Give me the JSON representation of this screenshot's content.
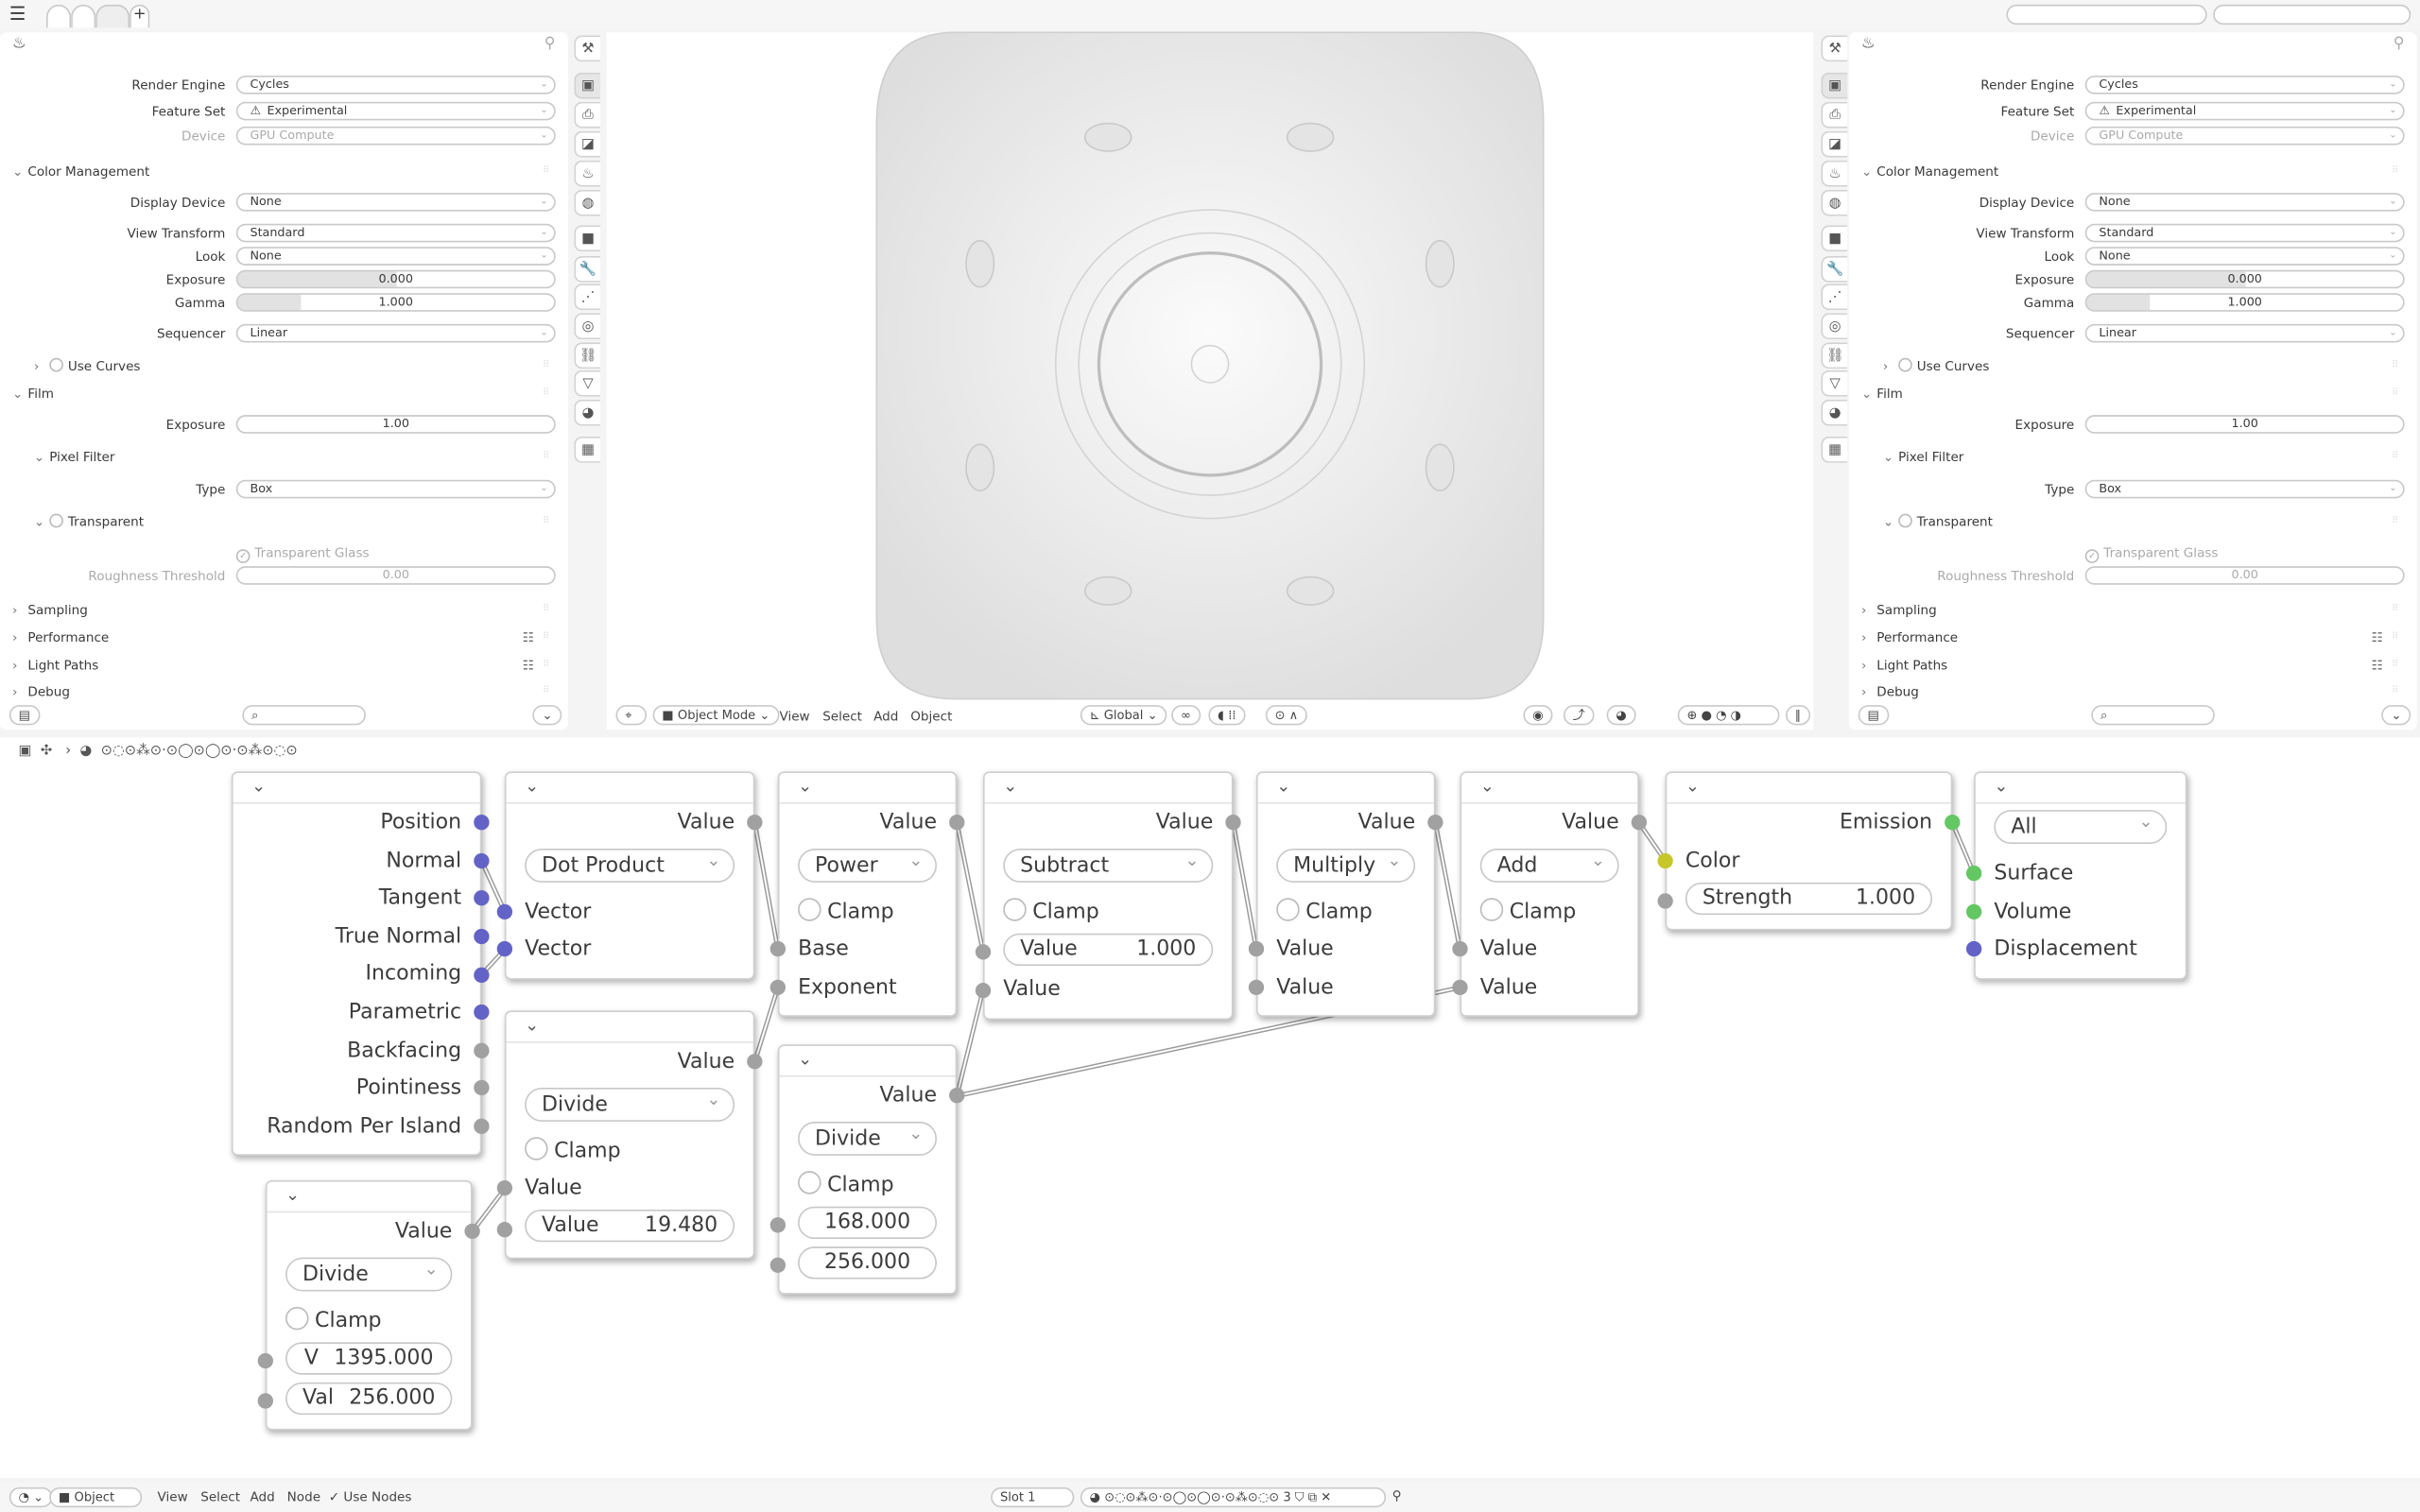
{
  "topbar": {
    "menu_icon": "hamburger-icon",
    "workspace_tabs": [
      "",
      "",
      ""
    ],
    "add_tab": "+"
  },
  "properties": {
    "editor_icon": "render-properties-icon",
    "rows": [
      {
        "label": "Render Engine",
        "value": "Cycles"
      },
      {
        "label": "Feature Set",
        "value": "Experimental",
        "icon": "warning-icon"
      },
      {
        "label": "Device",
        "value": "GPU Compute",
        "disabled": true
      },
      {
        "title": "Color Management",
        "expanded": true
      },
      {
        "label": "Display Device",
        "value": "None"
      },
      {
        "label": "View Transform",
        "value": "Standard"
      },
      {
        "label": "Look",
        "value": "None"
      },
      {
        "label": "Exposure",
        "value": "0.000",
        "fill": 0.5
      },
      {
        "label": "Gamma",
        "value": "1.000",
        "fill": 0.2
      },
      {
        "label": "Sequencer",
        "value": "Linear"
      },
      {
        "title": "Use Curves",
        "expanded": false,
        "checked": false
      },
      {
        "title": "Film",
        "expanded": true
      },
      {
        "label": "Exposure",
        "value": "1.00",
        "fill": 0
      },
      {
        "title": "Pixel Filter",
        "expanded": true
      },
      {
        "label": "Type",
        "value": "Box"
      },
      {
        "title": "Transparent",
        "expanded": true,
        "checked": false
      },
      {
        "title": "Transparent Glass",
        "checked": true,
        "disabled": true
      },
      {
        "label": "Roughness Threshold",
        "value": "0.00",
        "fill": 0,
        "disabled": true
      },
      {
        "title": "Sampling",
        "expanded": false
      },
      {
        "title": "Performance",
        "expanded": false,
        "icon": "list-icon"
      },
      {
        "title": "Light Paths",
        "expanded": false,
        "icon": "list-icon"
      },
      {
        "title": "Debug",
        "expanded": false
      }
    ],
    "tab_icons": [
      "tool-icon",
      "render-icon",
      "output-icon",
      "view-layer-icon",
      "scene-icon",
      "world-icon",
      "object-icon",
      "modifier-icon",
      "particles-icon",
      "physics-icon",
      "constraints-icon",
      "data-icon",
      "material-icon",
      "texture-icon"
    ]
  },
  "viewport": {
    "header": {
      "mode": "Object Mode",
      "menus": [
        "View",
        "Select",
        "Add",
        "Object"
      ],
      "orientation": "Global"
    }
  },
  "node_editor": {
    "breadcrumb": "⊙◌⊙⁂⊙·⊙◯⊙◯⊙·⊙⁂⊙◌⊙",
    "nodes": [
      {
        "rows": [
          {
            "t": "out",
            "label": "Position",
            "color": "#6363c7"
          },
          {
            "t": "out",
            "label": "Normal",
            "color": "#6363c7"
          },
          {
            "t": "out",
            "label": "Tangent",
            "color": "#6363c7"
          },
          {
            "t": "out",
            "label": "True Normal",
            "color": "#6363c7"
          },
          {
            "t": "out",
            "label": "Incoming",
            "color": "#6363c7"
          },
          {
            "t": "out",
            "label": "Parametric",
            "color": "#6363c7"
          },
          {
            "t": "out",
            "label": "Backfacing"
          },
          {
            "t": "out",
            "label": "Pointiness"
          },
          {
            "t": "out",
            "label": "Random Per Island"
          }
        ]
      },
      {
        "rows": [
          {
            "t": "out",
            "label": "Value"
          },
          {
            "t": "dd",
            "label": "Dot Product"
          },
          {
            "t": "in",
            "label": "Vector",
            "color": "#6363c7"
          },
          {
            "t": "in",
            "label": "Vector",
            "color": "#6363c7"
          }
        ]
      },
      {
        "rows": [
          {
            "t": "out",
            "label": "Value"
          },
          {
            "t": "dd",
            "label": "Power"
          },
          {
            "t": "chk",
            "label": "Clamp"
          },
          {
            "t": "in",
            "label": "Base"
          },
          {
            "t": "in",
            "label": "Exponent"
          }
        ]
      },
      {
        "rows": [
          {
            "t": "out",
            "label": "Value"
          },
          {
            "t": "dd",
            "label": "Subtract"
          },
          {
            "t": "chk",
            "label": "Clamp"
          },
          {
            "t": "field",
            "label": "Value",
            "value": "1.000"
          },
          {
            "t": "in",
            "label": "Value"
          }
        ]
      },
      {
        "rows": [
          {
            "t": "out",
            "label": "Value"
          },
          {
            "t": "dd",
            "label": "Multiply"
          },
          {
            "t": "chk",
            "label": "Clamp"
          },
          {
            "t": "in",
            "label": "Value"
          },
          {
            "t": "in",
            "label": "Value"
          }
        ]
      },
      {
        "rows": [
          {
            "t": "out",
            "label": "Value"
          },
          {
            "t": "dd",
            "label": "Add"
          },
          {
            "t": "chk",
            "label": "Clamp"
          },
          {
            "t": "in",
            "label": "Value"
          },
          {
            "t": "in",
            "label": "Value"
          }
        ]
      },
      {
        "rows": [
          {
            "t": "out",
            "label": "Emission",
            "color": "#63c763"
          },
          {
            "t": "in",
            "label": "Color",
            "color": "#c7c729"
          },
          {
            "t": "field",
            "label": "Strength",
            "value": "1.000"
          }
        ]
      },
      {
        "rows": [
          {
            "t": "dd",
            "label": "All"
          },
          {
            "t": "in",
            "label": "Surface",
            "color": "#63c763"
          },
          {
            "t": "in",
            "label": "Volume",
            "color": "#63c763"
          },
          {
            "t": "in",
            "label": "Displacement",
            "color": "#6363c7"
          }
        ]
      },
      {
        "rows": [
          {
            "t": "out",
            "label": "Value"
          },
          {
            "t": "dd",
            "label": "Divide"
          },
          {
            "t": "chk",
            "label": "Clamp"
          },
          {
            "t": "in",
            "label": "Value"
          },
          {
            "t": "field",
            "label": "Value",
            "value": "19.480"
          }
        ]
      },
      {
        "rows": [
          {
            "t": "out",
            "label": "Value"
          },
          {
            "t": "dd",
            "label": "Divide"
          },
          {
            "t": "chk",
            "label": "Clamp"
          },
          {
            "t": "field",
            "label": "",
            "value": "168.000"
          },
          {
            "t": "field",
            "label": "",
            "value": "256.000"
          }
        ]
      },
      {
        "rows": [
          {
            "t": "out",
            "label": "Value"
          },
          {
            "t": "dd",
            "label": "Divide"
          },
          {
            "t": "chk",
            "label": "Clamp"
          },
          {
            "t": "field",
            "label": "V",
            "value": "1395.000"
          },
          {
            "t": "field",
            "label": "Val",
            "value": "256.000"
          }
        ]
      }
    ],
    "links": [
      [
        0,
        1,
        1,
        2
      ],
      [
        0,
        4,
        1,
        3
      ],
      [
        1,
        0,
        2,
        3
      ],
      [
        8,
        0,
        2,
        4
      ],
      [
        2,
        0,
        3,
        3
      ],
      [
        9,
        0,
        3,
        4
      ],
      [
        3,
        0,
        4,
        3
      ],
      [
        9,
        0,
        5,
        4
      ],
      [
        4,
        0,
        5,
        3
      ],
      [
        5,
        0,
        6,
        1
      ],
      [
        6,
        0,
        7,
        1
      ],
      [
        10,
        0,
        8,
        3
      ]
    ]
  },
  "footer": {
    "editor": "Object",
    "menus": [
      "View",
      "Select",
      "Add",
      "Node"
    ],
    "use_nodes": "Use Nodes",
    "slot": "Slot 1",
    "material": "⊙◌⊙⁂⊙·⊙◯⊙◯⊙·⊙⁂⊙◌⊙",
    "users": "3"
  }
}
